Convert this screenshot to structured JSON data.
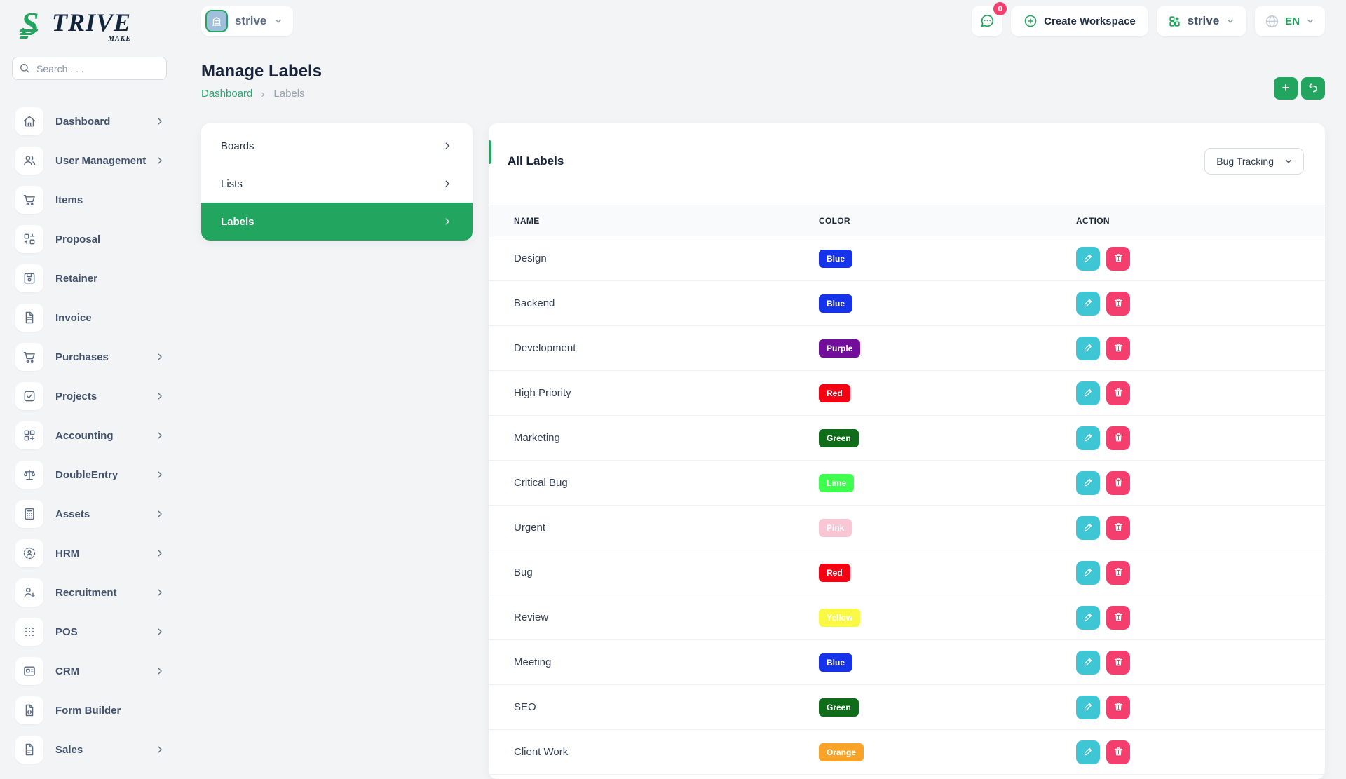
{
  "brand": {
    "logo_s": "S",
    "logo_rest": "TRIVE",
    "logo_sub": "MAKE"
  },
  "colors": {
    "accent": "#22a55e",
    "edit_button": "#3ec6d4",
    "delete_button": "#f33e6e",
    "badge_counter": "#f43f6e"
  },
  "topbar": {
    "workspace_pill_label": "strive",
    "chat_badge_count": "0",
    "create_workspace_label": "Create Workspace",
    "org_pill_label": "strive",
    "language_label": "EN"
  },
  "sidebar": {
    "search_placeholder": "Search . . .",
    "items": [
      {
        "label": "Dashboard",
        "icon": "home",
        "chevron": true
      },
      {
        "label": "User Management",
        "icon": "users",
        "chevron": true
      },
      {
        "label": "Items",
        "icon": "cart",
        "chevron": false
      },
      {
        "label": "Proposal",
        "icon": "qr",
        "chevron": false
      },
      {
        "label": "Retainer",
        "icon": "floppy",
        "chevron": false
      },
      {
        "label": "Invoice",
        "icon": "file",
        "chevron": false
      },
      {
        "label": "Purchases",
        "icon": "cart",
        "chevron": true
      },
      {
        "label": "Projects",
        "icon": "check-square",
        "chevron": true
      },
      {
        "label": "Accounting",
        "icon": "grid-add",
        "chevron": true
      },
      {
        "label": "DoubleEntry",
        "icon": "scale",
        "chevron": true
      },
      {
        "label": "Assets",
        "icon": "calculator",
        "chevron": true
      },
      {
        "label": "HRM",
        "icon": "hrm",
        "chevron": true
      },
      {
        "label": "Recruitment",
        "icon": "person-plus",
        "chevron": true
      },
      {
        "label": "POS",
        "icon": "grid-dots",
        "chevron": true
      },
      {
        "label": "CRM",
        "icon": "card",
        "chevron": true
      },
      {
        "label": "Form Builder",
        "icon": "file-code",
        "chevron": false
      },
      {
        "label": "Sales",
        "icon": "file-text",
        "chevron": true
      }
    ]
  },
  "page": {
    "title": "Manage Labels",
    "breadcrumb_home": "Dashboard",
    "breadcrumb_current": "Labels"
  },
  "submenu": {
    "items": [
      {
        "label": "Boards",
        "active": false
      },
      {
        "label": "Lists",
        "active": false
      },
      {
        "label": "Labels",
        "active": true
      }
    ]
  },
  "panel": {
    "title": "All Labels",
    "filter_value": "Bug Tracking",
    "table": {
      "headers": [
        "NAME",
        "COLOR",
        "ACTION"
      ],
      "rows": [
        {
          "name": "Design",
          "color_label": "Blue",
          "color_hex": "#1533e8"
        },
        {
          "name": "Backend",
          "color_label": "Blue",
          "color_hex": "#1533e8"
        },
        {
          "name": "Development",
          "color_label": "Purple",
          "color_hex": "#730d9c"
        },
        {
          "name": "High Priority",
          "color_label": "Red",
          "color_hex": "#f60013"
        },
        {
          "name": "Marketing",
          "color_label": "Green",
          "color_hex": "#0f6d1a"
        },
        {
          "name": "Critical Bug",
          "color_label": "Lime",
          "color_hex": "#3eff4e"
        },
        {
          "name": "Urgent",
          "color_label": "Pink",
          "color_hex": "#f9c7d3"
        },
        {
          "name": "Bug",
          "color_label": "Red",
          "color_hex": "#f60013"
        },
        {
          "name": "Review",
          "color_label": "Yellow",
          "color_hex": "#f9f844"
        },
        {
          "name": "Meeting",
          "color_label": "Blue",
          "color_hex": "#1533e8"
        },
        {
          "name": "SEO",
          "color_label": "Green",
          "color_hex": "#0f6d1a"
        },
        {
          "name": "Client Work",
          "color_label": "Orange",
          "color_hex": "#f9a328"
        }
      ]
    }
  }
}
